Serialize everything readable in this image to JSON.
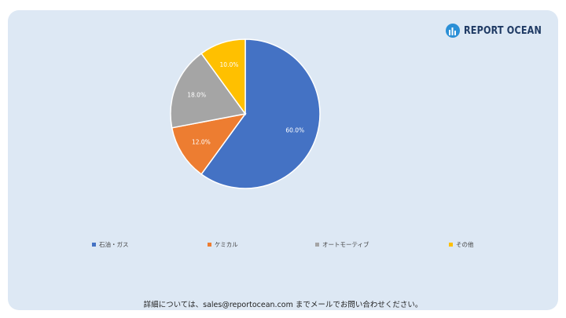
{
  "brand": {
    "name": "REPORT OCEAN"
  },
  "chart_data": {
    "type": "pie",
    "categories": [
      "石油・ガス",
      "ケミカル",
      "オートモーティブ",
      "その他"
    ],
    "values": [
      60.0,
      12.0,
      18.0,
      10.0
    ],
    "value_labels": [
      "60.0%",
      "12.0%",
      "18.0%",
      "10.0%"
    ],
    "colors": [
      "#4472c4",
      "#ed7d31",
      "#a5a5a5",
      "#ffc000"
    ],
    "start_angle_deg": 0,
    "direction": "clockwise",
    "legend_position": "bottom"
  },
  "footer": {
    "text": "詳細については、sales@reportocean.com までメールでお問い合わせください。"
  }
}
